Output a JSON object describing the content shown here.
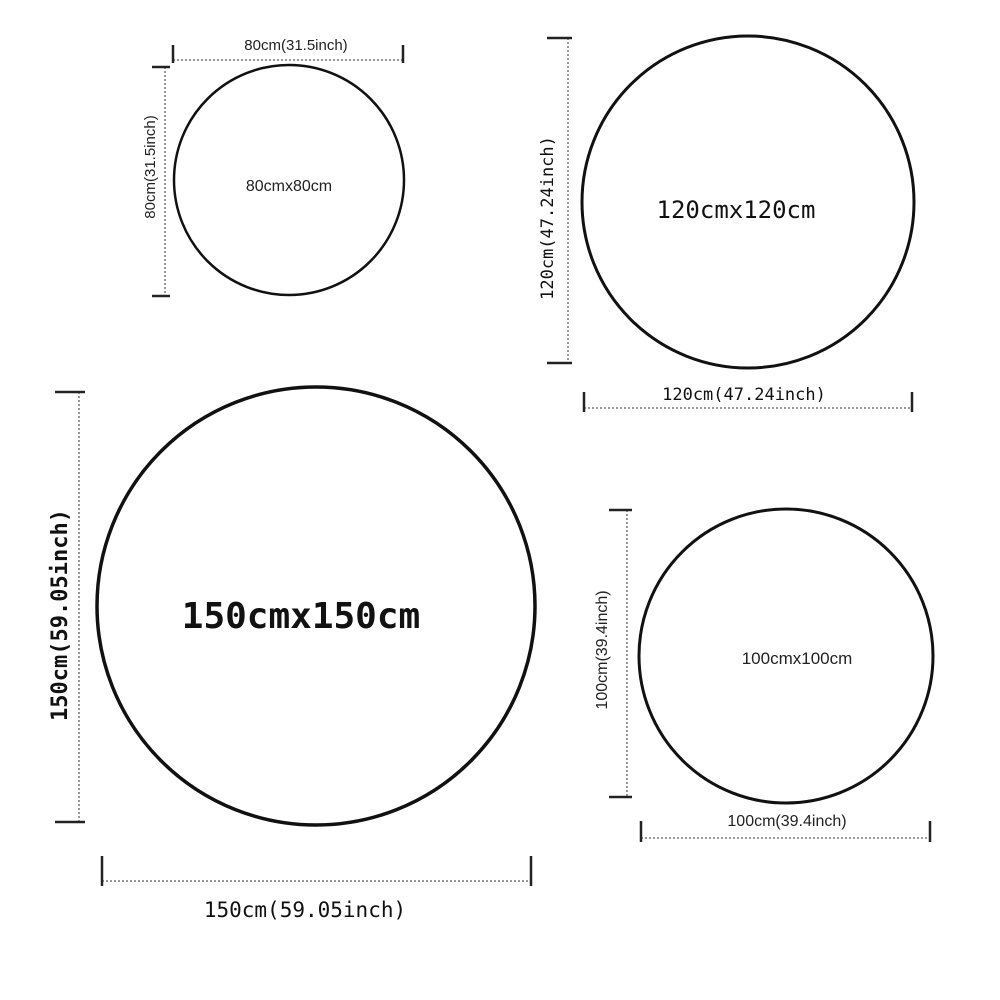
{
  "circles": [
    {
      "size_label": "80cmx80cm",
      "width_label": "80cm(31.5inch)",
      "height_label": "80cm(31.5inch)"
    },
    {
      "size_label": "120cmx120cm",
      "width_label": "120cm(47.24inch)",
      "height_label": "120cm(47.24inch)"
    },
    {
      "size_label": "150cmx150cm",
      "width_label": "150cm(59.05inch)",
      "height_label": "150cm(59.05inch)"
    },
    {
      "size_label": "100cmx100cm",
      "width_label": "100cm(39.4inch)",
      "height_label": "100cm(39.4inch)"
    }
  ]
}
